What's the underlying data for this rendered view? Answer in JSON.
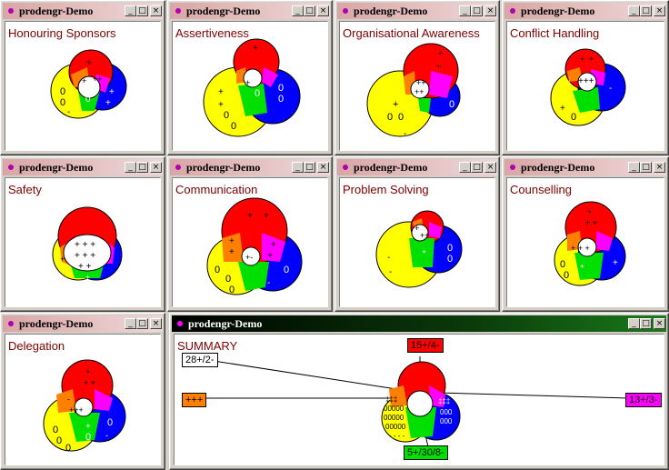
{
  "app_title": "prodengr-Demo",
  "colors": {
    "red": "#ff0000",
    "yellow": "#ffff00",
    "blue": "#0000ff",
    "green": "#00e000",
    "orange": "#ff8000",
    "magenta": "#ff00ff",
    "white": "#ffffff",
    "label": "#800000"
  },
  "panels": [
    {
      "title": "Honouring Sponsors"
    },
    {
      "title": "Assertiveness"
    },
    {
      "title": "Organisational Awareness"
    },
    {
      "title": "Conflict Handling"
    },
    {
      "title": "Safety"
    },
    {
      "title": "Communication"
    },
    {
      "title": "Problem Solving"
    },
    {
      "title": "Counselling"
    },
    {
      "title": "Delegation"
    }
  ],
  "summary": {
    "label": "SUMMARY",
    "red_box": "15+/4-",
    "yellow_box": "28+/2-",
    "orange_box": "+++",
    "magenta_box": "13+/3-",
    "green_box": "5+/30/8-"
  }
}
